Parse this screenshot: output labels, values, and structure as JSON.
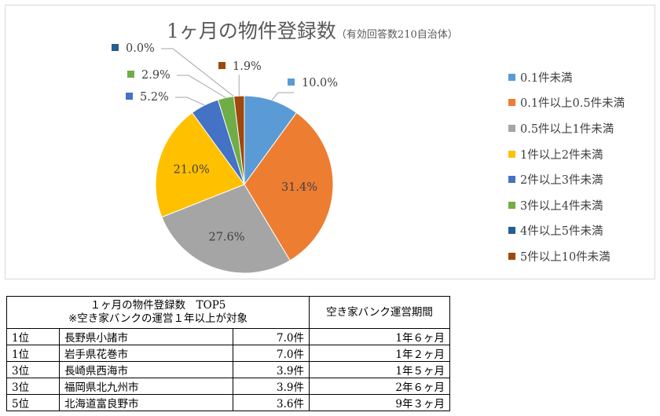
{
  "chart_data": {
    "type": "pie",
    "title": "1ヶ月の物件登録数",
    "subtitle": "（有効回答数210自治体）",
    "categories": [
      "0.1件未満",
      "0.1件以上0.5件未満",
      "0.5件以上1件未満",
      "1件以上2件未満",
      "2件以上3件未満",
      "3件以上4件未満",
      "4件以上5件未満",
      "5件以上10件未満"
    ],
    "values": [
      10.0,
      31.4,
      27.6,
      21.0,
      5.2,
      2.9,
      0.0,
      1.9
    ],
    "labels": [
      "10.0%",
      "31.4%",
      "27.6%",
      "21.0%",
      "5.2%",
      "2.9%",
      "0.0%",
      "1.9%"
    ],
    "colors": [
      "#5B9BD5",
      "#ED7D31",
      "#A5A5A5",
      "#FFC000",
      "#4472C4",
      "#70AD47",
      "#255E91",
      "#9E480E"
    ],
    "legend_position": "right"
  },
  "table": {
    "header_left_line1": "１ヶ月の物件登録数　TOP5",
    "header_left_line2": "※空き家バンクの運営１年以上が対象",
    "header_right": "空き家バンク運営期間",
    "rows": [
      {
        "rank": "1位",
        "name": "長野県小諸市",
        "count": "7.0件",
        "period": "1年６ヶ月"
      },
      {
        "rank": "1位",
        "name": "岩手県花巻市",
        "count": "7.0件",
        "period": "1年２ヶ月"
      },
      {
        "rank": "3位",
        "name": "長崎県西海市",
        "count": "3.9件",
        "period": "1年５ヶ月"
      },
      {
        "rank": "3位",
        "name": "福岡県北九州市",
        "count": "3.9件",
        "period": "2年６ヶ月"
      },
      {
        "rank": "5位",
        "name": "北海道富良野市",
        "count": "3.6件",
        "period": "9年３ヶ月"
      }
    ]
  }
}
